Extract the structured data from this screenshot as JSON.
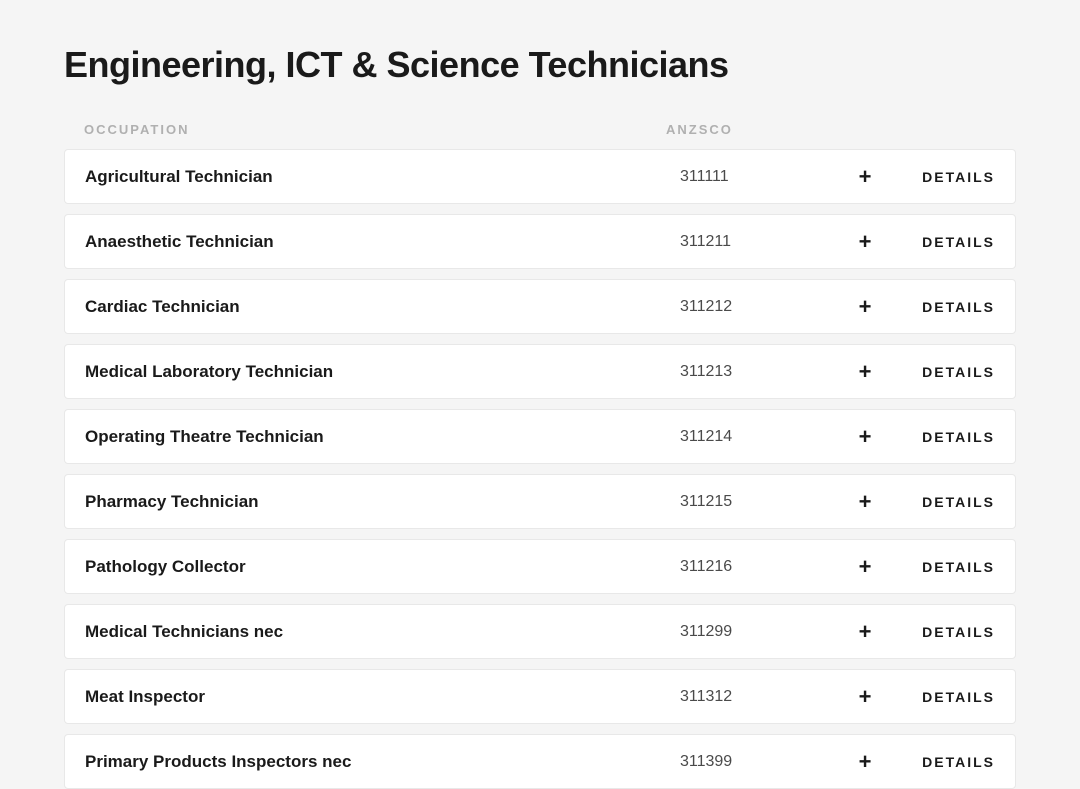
{
  "title": "Engineering, ICT & Science Technicians",
  "headers": {
    "occupation": "OCCUPATION",
    "anzsco": "ANZSCO"
  },
  "detailsLabel": "DETAILS",
  "expandSymbol": "+",
  "rows": [
    {
      "occupation": "Agricultural Technician",
      "anzsco": "311111"
    },
    {
      "occupation": "Anaesthetic Technician",
      "anzsco": "311211"
    },
    {
      "occupation": "Cardiac Technician",
      "anzsco": "311212"
    },
    {
      "occupation": "Medical Laboratory Technician",
      "anzsco": "311213"
    },
    {
      "occupation": "Operating Theatre Technician",
      "anzsco": "311214"
    },
    {
      "occupation": "Pharmacy Technician",
      "anzsco": "311215"
    },
    {
      "occupation": "Pathology Collector",
      "anzsco": "311216"
    },
    {
      "occupation": "Medical Technicians nec",
      "anzsco": "311299"
    },
    {
      "occupation": "Meat Inspector",
      "anzsco": "311312"
    },
    {
      "occupation": "Primary Products Inspectors nec",
      "anzsco": "311399"
    }
  ],
  "colors": {
    "background": "#f5f5f5",
    "rowBackground": "#ffffff",
    "rowBorder": "#e8e8e8",
    "titleText": "#1a1a1a",
    "headerText": "#b0b0b0",
    "occupationText": "#1a1a1a",
    "anzscoText": "#4a4a4a"
  }
}
